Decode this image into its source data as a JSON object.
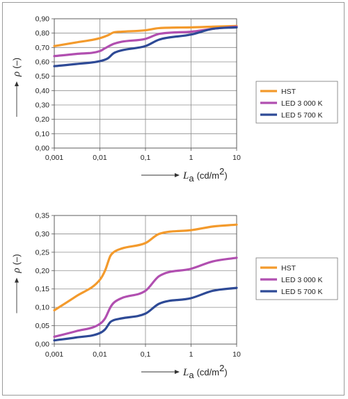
{
  "chart_data": [
    {
      "type": "line",
      "x_scale": "log",
      "xlim": [
        0.001,
        10
      ],
      "ylim": [
        0,
        0.9
      ],
      "y_ticks": [
        "0,00",
        "0,10",
        "0,20",
        "0,30",
        "0,40",
        "0,50",
        "0,60",
        "0,70",
        "0,80",
        "0,90"
      ],
      "x_ticks": [
        "0,001",
        "0,01",
        "0,1",
        "1",
        "10"
      ],
      "xlabel_sym": "L",
      "xlabel_sub": "a",
      "xlabel_unit": "(cd/m",
      "xlabel_exp": "2",
      "xlabel_close": ")",
      "ylabel_sym": "ρ",
      "ylabel_unit": "(–)",
      "grid": true,
      "legend_position": "right",
      "series": [
        {
          "name": "HST",
          "color": "#f39a2c",
          "x": [
            0.001,
            0.003,
            0.01,
            0.015,
            0.02,
            0.03,
            0.1,
            0.2,
            1,
            3,
            10
          ],
          "y": [
            0.71,
            0.735,
            0.765,
            0.785,
            0.805,
            0.81,
            0.82,
            0.835,
            0.84,
            0.845,
            0.85
          ]
        },
        {
          "name": "LED 3 000 K",
          "color": "#b14fb0",
          "x": [
            0.001,
            0.003,
            0.01,
            0.013,
            0.02,
            0.03,
            0.1,
            0.2,
            1,
            3,
            10
          ],
          "y": [
            0.64,
            0.655,
            0.675,
            0.695,
            0.725,
            0.74,
            0.76,
            0.795,
            0.81,
            0.83,
            0.845
          ]
        },
        {
          "name": "LED 5 700 K",
          "color": "#2e4a96",
          "x": [
            0.001,
            0.003,
            0.01,
            0.015,
            0.02,
            0.03,
            0.1,
            0.2,
            1,
            3,
            10
          ],
          "y": [
            0.57,
            0.585,
            0.605,
            0.625,
            0.66,
            0.68,
            0.71,
            0.755,
            0.79,
            0.83,
            0.84
          ]
        }
      ]
    },
    {
      "type": "line",
      "x_scale": "log",
      "xlim": [
        0.001,
        10
      ],
      "ylim": [
        0,
        0.35
      ],
      "y_ticks": [
        "0,00",
        "0,05",
        "0,10",
        "0,15",
        "0,20",
        "0,25",
        "0,30",
        "0,35"
      ],
      "x_ticks": [
        "0,001",
        "0,01",
        "0,1",
        "1",
        "10"
      ],
      "xlabel_sym": "L",
      "xlabel_sub": "a",
      "xlabel_unit": "(cd/m",
      "xlabel_exp": "2",
      "xlabel_close": ")",
      "ylabel_sym": "ρ",
      "ylabel_unit": "(–)",
      "grid": true,
      "legend_position": "right",
      "series": [
        {
          "name": "HST",
          "color": "#f39a2c",
          "x": [
            0.001,
            0.003,
            0.01,
            0.013,
            0.017,
            0.02,
            0.03,
            0.1,
            0.2,
            1,
            3,
            10
          ],
          "y": [
            0.092,
            0.13,
            0.175,
            0.2,
            0.24,
            0.25,
            0.26,
            0.275,
            0.3,
            0.31,
            0.32,
            0.325
          ]
        },
        {
          "name": "LED 3 000 K",
          "color": "#b14fb0",
          "x": [
            0.001,
            0.003,
            0.01,
            0.013,
            0.017,
            0.02,
            0.03,
            0.1,
            0.2,
            1,
            3,
            10
          ],
          "y": [
            0.02,
            0.035,
            0.055,
            0.07,
            0.1,
            0.112,
            0.125,
            0.145,
            0.185,
            0.205,
            0.225,
            0.235
          ]
        },
        {
          "name": "LED 5 700 K",
          "color": "#2e4a96",
          "x": [
            0.001,
            0.003,
            0.01,
            0.013,
            0.017,
            0.02,
            0.03,
            0.1,
            0.2,
            1,
            3,
            10
          ],
          "y": [
            0.01,
            0.018,
            0.03,
            0.04,
            0.06,
            0.065,
            0.07,
            0.083,
            0.11,
            0.125,
            0.145,
            0.153
          ]
        }
      ]
    }
  ]
}
